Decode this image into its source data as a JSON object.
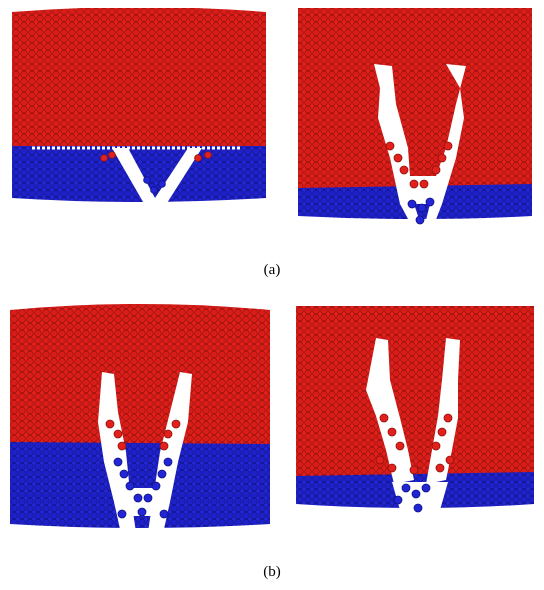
{
  "figure": {
    "row_a": {
      "label": "(a)"
    },
    "row_b": {
      "label": "(b)"
    }
  },
  "colors": {
    "upper_phase": "#e4201c",
    "upper_phase_dark": "#9e1410",
    "lower_phase": "#2326d6",
    "lower_phase_dark": "#12158a",
    "background": "#ffffff"
  },
  "panels": [
    {
      "id": "a-left",
      "row": "a",
      "crack": "v-notch"
    },
    {
      "id": "a-right",
      "row": "a",
      "crack": "double-branch"
    },
    {
      "id": "b-left",
      "row": "b",
      "crack": "double-branch"
    },
    {
      "id": "b-right",
      "row": "b",
      "crack": "triple-branch"
    }
  ]
}
